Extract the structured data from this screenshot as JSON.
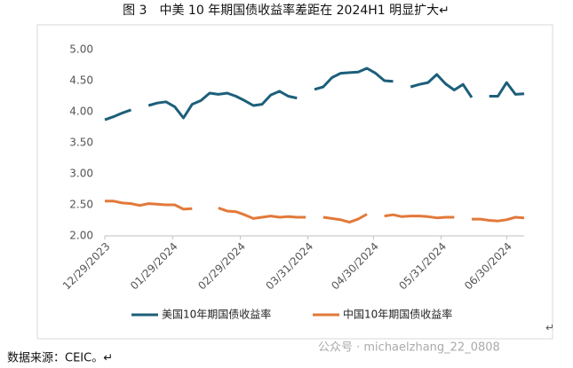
{
  "chart_data": {
    "type": "line",
    "title": "图 3　中美 10 年期国债收益率差距在 2024H1 明显扩大↵",
    "x": [
      "12/29/2023",
      "01/02/2024",
      "01/06/2024",
      "01/10/2024",
      "01/14/2024",
      "01/18/2024",
      "01/22/2024",
      "01/26/2024",
      "01/30/2024",
      "02/03/2024",
      "02/07/2024",
      "02/11/2024",
      "02/15/2024",
      "02/19/2024",
      "02/23/2024",
      "02/27/2024",
      "03/02/2024",
      "03/06/2024",
      "03/10/2024",
      "03/14/2024",
      "03/18/2024",
      "03/22/2024",
      "03/26/2024",
      "03/30/2024",
      "04/03/2024",
      "04/07/2024",
      "04/11/2024",
      "04/15/2024",
      "04/19/2024",
      "04/23/2024",
      "04/27/2024",
      "05/01/2024",
      "05/05/2024",
      "05/09/2024",
      "05/13/2024",
      "05/17/2024",
      "05/21/2024",
      "05/25/2024",
      "05/29/2024",
      "06/02/2024",
      "06/06/2024",
      "06/10/2024",
      "06/14/2024",
      "06/18/2024",
      "06/22/2024",
      "06/26/2024",
      "06/30/2024",
      "07/04/2024",
      "07/08/2024"
    ],
    "series": [
      {
        "name": "美国10年期国债收益率",
        "color": "#1c5f7a",
        "values": [
          3.87,
          3.92,
          3.98,
          4.03,
          null,
          4.1,
          4.14,
          4.16,
          4.08,
          3.9,
          4.12,
          4.18,
          4.3,
          4.28,
          4.3,
          4.25,
          4.18,
          4.1,
          4.12,
          4.27,
          4.33,
          4.25,
          4.22,
          null,
          4.36,
          4.4,
          4.55,
          4.62,
          4.63,
          4.64,
          4.7,
          4.62,
          4.5,
          4.49,
          null,
          4.4,
          4.44,
          4.47,
          4.6,
          4.45,
          4.35,
          4.44,
          4.23,
          null,
          4.25,
          4.25,
          4.47,
          4.28,
          4.29
        ]
      },
      {
        "name": "中国10年期国债收益率",
        "color": "#e2793a",
        "values": [
          2.56,
          2.56,
          2.53,
          2.52,
          2.49,
          2.52,
          2.51,
          2.5,
          2.5,
          2.43,
          2.44,
          null,
          null,
          2.45,
          2.4,
          2.39,
          2.34,
          2.28,
          2.3,
          2.32,
          2.3,
          2.31,
          2.3,
          2.3,
          null,
          2.3,
          2.28,
          2.26,
          2.22,
          2.27,
          2.35,
          null,
          2.32,
          2.34,
          2.31,
          2.32,
          2.32,
          2.31,
          2.29,
          2.3,
          2.3,
          null,
          2.27,
          2.27,
          2.25,
          2.24,
          2.26,
          2.3,
          2.29
        ]
      }
    ],
    "xlim": [
      "12/29/2023",
      "07/08/2024"
    ],
    "xticks": [
      "12/29/2023",
      "01/29/2024",
      "02/29/2024",
      "03/31/2024",
      "04/30/2024",
      "05/31/2024",
      "06/30/2024"
    ],
    "ylim": [
      2,
      5
    ],
    "yticks": [
      {
        "value": 2,
        "label": "2.00"
      },
      {
        "value": 2.5,
        "label": "2.50"
      },
      {
        "value": 3,
        "label": "3.00"
      },
      {
        "value": 3.5,
        "label": "3.50"
      },
      {
        "value": 4,
        "label": "4.00"
      },
      {
        "value": 4.5,
        "label": "4.50"
      },
      {
        "value": 5,
        "label": "5.00"
      }
    ],
    "grid": false,
    "legend": "bottom",
    "source": "数据来源：CEIC。↵",
    "watermark": "公众号 · michaelzhang_22_0808",
    "annotations": [
      "↵"
    ]
  }
}
